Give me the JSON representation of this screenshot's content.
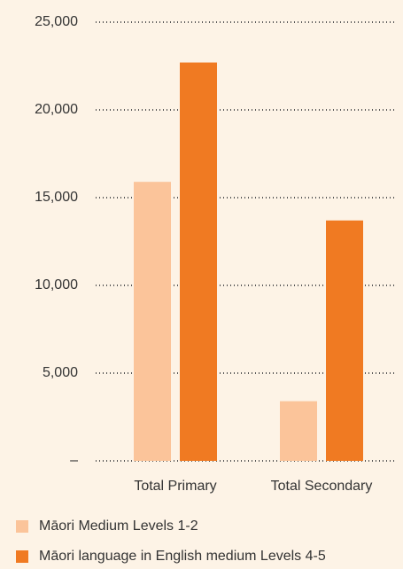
{
  "chart_data": {
    "type": "bar",
    "categories": [
      "Total Primary",
      "Total Secondary"
    ],
    "series": [
      {
        "name": "Māori Medium Levels 1-2",
        "color": "#fbc49a",
        "values": [
          15900,
          3400
        ]
      },
      {
        "name": "Māori language in English medium Levels 4-5",
        "color": "#f07a22",
        "values": [
          22700,
          13700
        ]
      }
    ],
    "ylim": [
      0,
      25000
    ],
    "yticks": [
      {
        "value": 0,
        "label": "–"
      },
      {
        "value": 5000,
        "label": "5,000"
      },
      {
        "value": 10000,
        "label": "10,000"
      },
      {
        "value": 15000,
        "label": "15,000"
      },
      {
        "value": 20000,
        "label": "20,000"
      },
      {
        "value": 25000,
        "label": "25,000"
      }
    ],
    "grid": true,
    "legend": "bottom"
  }
}
